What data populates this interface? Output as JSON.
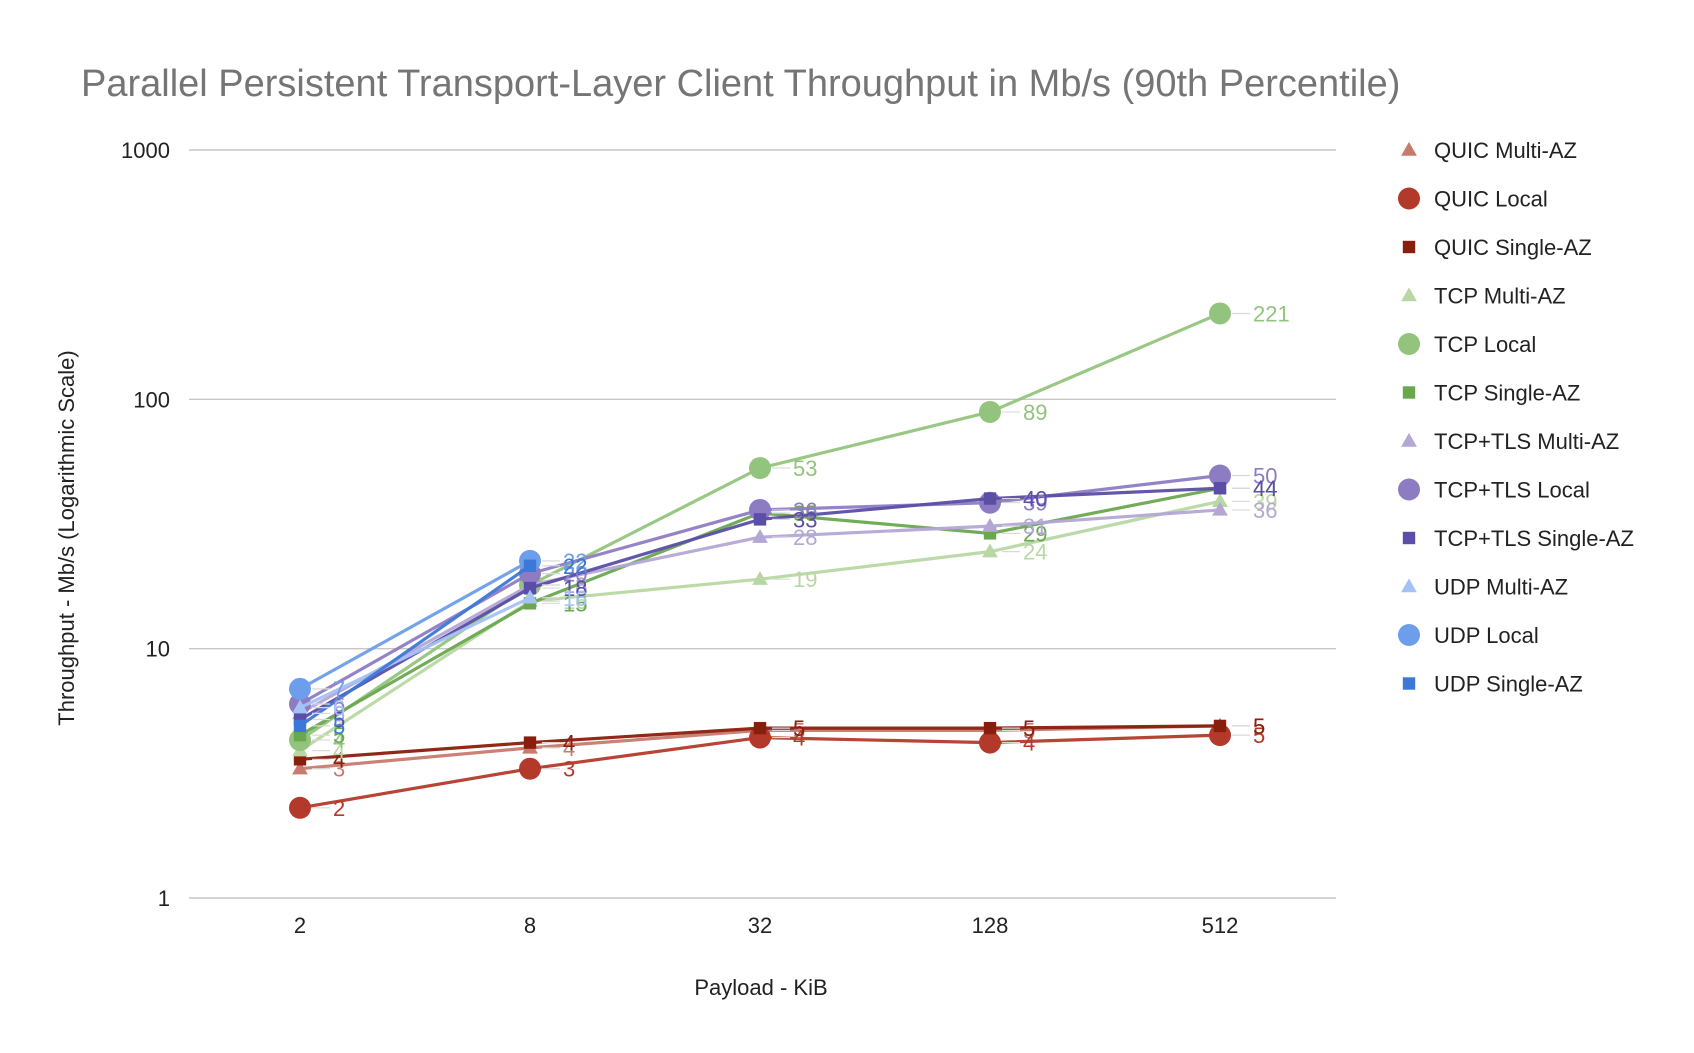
{
  "chart_data": {
    "type": "line",
    "title": "Parallel Persistent Transport-Layer Client Throughput in Mb/s (90th Percentile)",
    "xlabel": "Payload - KiB",
    "ylabel": "Throughput - Mb/s (Logarithmic Scale)",
    "y_scale": "log",
    "ylim": [
      1,
      1000
    ],
    "y_ticks": [
      "1",
      "10",
      "100",
      "1000"
    ],
    "categories": [
      "2",
      "8",
      "32",
      "128",
      "512"
    ],
    "grid": "horizontal",
    "legend_position": "right",
    "series": [
      {
        "name": "QUIC Multi-AZ",
        "marker": "triangle",
        "color": "#c97a6f",
        "values": [
          3.3,
          4.0,
          4.7,
          4.7,
          4.9
        ],
        "labels": [
          "3",
          "4",
          "5",
          "5",
          "5"
        ]
      },
      {
        "name": "QUIC Local",
        "marker": "circle",
        "color": "#b33a2a",
        "values": [
          2.3,
          3.3,
          4.4,
          4.2,
          4.5
        ],
        "labels": [
          "2",
          "3",
          "4",
          "4",
          "5"
        ]
      },
      {
        "name": "QUIC Single-AZ",
        "marker": "square",
        "color": "#8a1e0c",
        "values": [
          3.6,
          4.2,
          4.8,
          4.8,
          4.9
        ],
        "labels": [
          "4",
          "4",
          "5",
          "5",
          "5"
        ]
      },
      {
        "name": "TCP Multi-AZ",
        "marker": "triangle",
        "color": "#b8d7a3",
        "values": [
          3.9,
          15.5,
          19,
          24.5,
          39
        ],
        "labels": [
          "4",
          "16",
          "19",
          "24",
          "39"
        ]
      },
      {
        "name": "TCP Local",
        "marker": "circle",
        "color": "#93c47d",
        "values": [
          4.3,
          18,
          53,
          89,
          221
        ],
        "labels": [
          "4",
          "18",
          "53",
          "89",
          "221"
        ]
      },
      {
        "name": "TCP Single-AZ",
        "marker": "square",
        "color": "#6aa84f",
        "values": [
          4.5,
          15.2,
          35,
          29,
          44
        ],
        "labels": [
          "5",
          "15",
          "35",
          "29",
          "44"
        ]
      },
      {
        "name": "TCP+TLS Multi-AZ",
        "marker": "triangle",
        "color": "#b4a7d6",
        "values": [
          5.5,
          18,
          28,
          31,
          36
        ],
        "labels": [
          "6",
          "18",
          "28",
          "31",
          "36"
        ]
      },
      {
        "name": "TCP+TLS Local",
        "marker": "circle",
        "color": "#8e7cc3",
        "values": [
          6.0,
          20,
          36,
          38.5,
          49.5
        ],
        "labels": [
          "6",
          "20",
          "36",
          "39",
          "50"
        ]
      },
      {
        "name": "TCP+TLS Single-AZ",
        "marker": "square",
        "color": "#5b4ea8",
        "values": [
          5.2,
          17.5,
          33,
          40,
          44
        ],
        "labels": [
          "5",
          "18",
          "33",
          "40",
          "44"
        ]
      },
      {
        "name": "UDP Multi-AZ",
        "marker": "triangle",
        "color": "#a4c2f4",
        "values": [
          5.8,
          16,
          null,
          null,
          null
        ],
        "labels": [
          "6",
          "16",
          "",
          "",
          ""
        ]
      },
      {
        "name": "UDP Local",
        "marker": "circle",
        "color": "#6d9eeb",
        "values": [
          6.9,
          22.5,
          null,
          null,
          null
        ],
        "labels": [
          "7",
          "22",
          "",
          "",
          ""
        ]
      },
      {
        "name": "UDP Single-AZ",
        "marker": "square",
        "color": "#3c78d8",
        "values": [
          4.9,
          21.5,
          null,
          null,
          null
        ],
        "labels": [
          "5",
          "22",
          "",
          "",
          ""
        ]
      }
    ]
  }
}
